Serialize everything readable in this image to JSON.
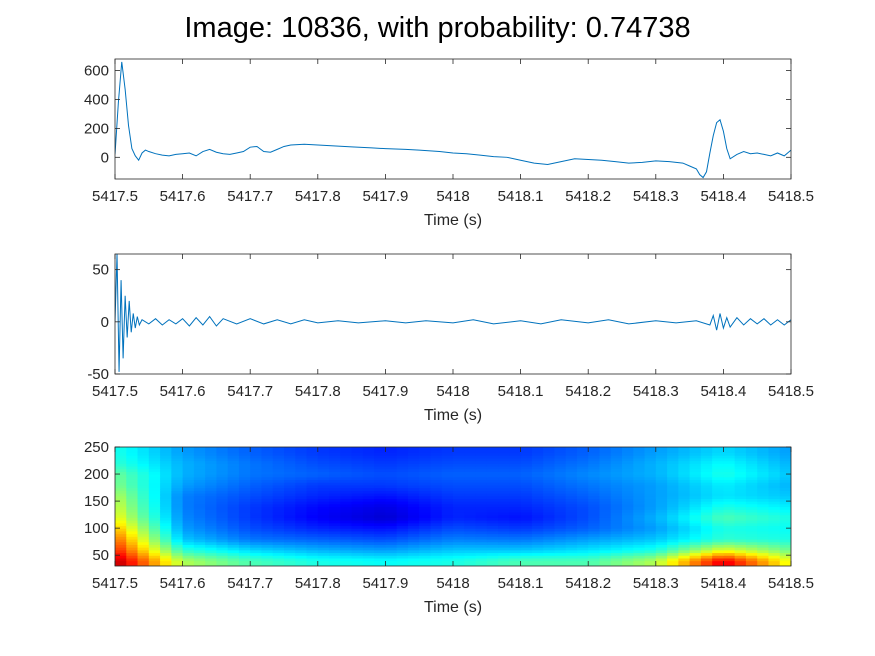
{
  "figure": {
    "title": "Image: 10836, with probability: 0.74738",
    "line_color": "#0072BD"
  },
  "chart_data": [
    {
      "type": "line",
      "title": "",
      "xlabel": "Time (s)",
      "ylabel": "",
      "xlim": [
        5417.5,
        5418.5
      ],
      "ylim": [
        -150,
        680
      ],
      "xticks": [
        5417.5,
        5417.6,
        5417.7,
        5417.8,
        5417.9,
        5418,
        5418.1,
        5418.2,
        5418.3,
        5418.4,
        5418.5
      ],
      "xtick_labels": [
        "5417.5",
        "5417.6",
        "5417.7",
        "5417.8",
        "5417.9",
        "5418",
        "5418.1",
        "5418.2",
        "5418.3",
        "5418.4",
        "5418.5"
      ],
      "yticks": [
        0,
        200,
        400,
        600
      ],
      "ytick_labels": [
        "0",
        "200",
        "400",
        "600"
      ],
      "series": [
        {
          "x": [
            5417.5,
            5417.505,
            5417.51,
            5417.515,
            5417.52,
            5417.525,
            5417.53,
            5417.535,
            5417.54,
            5417.545,
            5417.55,
            5417.56,
            5417.57,
            5417.58,
            5417.59,
            5417.6,
            5417.61,
            5417.62,
            5417.63,
            5417.64,
            5417.65,
            5417.66,
            5417.67,
            5417.68,
            5417.69,
            5417.7,
            5417.71,
            5417.72,
            5417.73,
            5417.74,
            5417.75,
            5417.76,
            5417.78,
            5417.8,
            5417.82,
            5417.85,
            5417.88,
            5417.9,
            5417.93,
            5417.95,
            5417.98,
            5418.0,
            5418.02,
            5418.04,
            5418.06,
            5418.08,
            5418.1,
            5418.12,
            5418.14,
            5418.16,
            5418.18,
            5418.2,
            5418.22,
            5418.24,
            5418.26,
            5418.28,
            5418.3,
            5418.32,
            5418.34,
            5418.35,
            5418.36,
            5418.365,
            5418.37,
            5418.375,
            5418.38,
            5418.385,
            5418.39,
            5418.395,
            5418.4,
            5418.405,
            5418.41,
            5418.42,
            5418.43,
            5418.44,
            5418.45,
            5418.46,
            5418.47,
            5418.48,
            5418.49,
            5418.5
          ],
          "y": [
            20,
            380,
            660,
            470,
            220,
            60,
            10,
            -20,
            30,
            50,
            40,
            25,
            15,
            10,
            20,
            25,
            30,
            10,
            40,
            55,
            35,
            25,
            20,
            30,
            40,
            70,
            75,
            40,
            35,
            55,
            75,
            85,
            90,
            85,
            80,
            72,
            65,
            60,
            55,
            50,
            40,
            30,
            25,
            15,
            5,
            0,
            -20,
            -40,
            -50,
            -30,
            -10,
            -15,
            -20,
            -30,
            -40,
            -35,
            -25,
            -30,
            -40,
            -60,
            -80,
            -120,
            -140,
            -100,
            30,
            150,
            240,
            260,
            180,
            60,
            -10,
            20,
            40,
            25,
            30,
            20,
            10,
            30,
            10,
            50
          ]
        }
      ]
    },
    {
      "type": "line",
      "title": "",
      "xlabel": "Time (s)",
      "ylabel": "",
      "xlim": [
        5417.5,
        5418.5
      ],
      "ylim": [
        -50,
        65
      ],
      "xticks": [
        5417.5,
        5417.6,
        5417.7,
        5417.8,
        5417.9,
        5418,
        5418.1,
        5418.2,
        5418.3,
        5418.4,
        5418.5
      ],
      "xtick_labels": [
        "5417.5",
        "5417.6",
        "5417.7",
        "5417.8",
        "5417.9",
        "5418",
        "5418.1",
        "5418.2",
        "5418.3",
        "5418.4",
        "5418.5"
      ],
      "yticks": [
        -50,
        0,
        50
      ],
      "ytick_labels": [
        "-50",
        "0",
        "50"
      ],
      "series": [
        {
          "x": [
            5417.5,
            5417.503,
            5417.506,
            5417.509,
            5417.512,
            5417.515,
            5417.518,
            5417.521,
            5417.524,
            5417.527,
            5417.53,
            5417.533,
            5417.536,
            5417.54,
            5417.55,
            5417.56,
            5417.57,
            5417.58,
            5417.59,
            5417.6,
            5417.61,
            5417.62,
            5417.63,
            5417.64,
            5417.65,
            5417.66,
            5417.68,
            5417.7,
            5417.72,
            5417.74,
            5417.76,
            5417.78,
            5417.8,
            5417.83,
            5417.86,
            5417.9,
            5417.93,
            5417.96,
            5418.0,
            5418.03,
            5418.06,
            5418.1,
            5418.13,
            5418.16,
            5418.2,
            5418.23,
            5418.26,
            5418.3,
            5418.33,
            5418.36,
            5418.38,
            5418.385,
            5418.39,
            5418.395,
            5418.4,
            5418.405,
            5418.41,
            5418.42,
            5418.43,
            5418.44,
            5418.45,
            5418.46,
            5418.47,
            5418.48,
            5418.49,
            5418.5
          ],
          "y": [
            0,
            65,
            -48,
            40,
            -35,
            25,
            -15,
            20,
            -10,
            8,
            -6,
            5,
            -3,
            2,
            -2,
            3,
            -3,
            2,
            -2,
            3,
            -4,
            4,
            -3,
            5,
            -4,
            3,
            -2,
            3,
            -2,
            2,
            -2,
            2,
            -1,
            1,
            -1,
            1,
            -1,
            1,
            -1,
            2,
            -2,
            1,
            -2,
            2,
            -1,
            2,
            -2,
            1,
            -1,
            1,
            -3,
            6,
            -8,
            8,
            -6,
            4,
            -5,
            4,
            -3,
            3,
            -2,
            3,
            -3,
            2,
            -3,
            2
          ]
        }
      ]
    },
    {
      "type": "heatmap",
      "title": "",
      "xlabel": "Time (s)",
      "ylabel": "",
      "colormap": "jet",
      "xlim": [
        5417.5,
        5418.5
      ],
      "ylim": [
        30,
        250
      ],
      "xticks": [
        5417.5,
        5417.6,
        5417.7,
        5417.8,
        5417.9,
        5418,
        5418.1,
        5418.2,
        5418.3,
        5418.4,
        5418.5
      ],
      "xtick_labels": [
        "5417.5",
        "5417.6",
        "5417.7",
        "5417.8",
        "5417.9",
        "5418",
        "5418.1",
        "5418.2",
        "5418.3",
        "5418.4",
        "5418.5"
      ],
      "yticks": [
        50,
        100,
        150,
        200,
        250
      ],
      "ytick_labels": [
        "50",
        "100",
        "150",
        "200",
        "250"
      ],
      "x": [
        5417.5,
        5417.6,
        5417.7,
        5417.8,
        5417.9,
        5418.0,
        5418.1,
        5418.2,
        5418.3,
        5418.4,
        5418.5
      ],
      "y": [
        40,
        60,
        80,
        100,
        120,
        140,
        160,
        180,
        200,
        220,
        240
      ],
      "z": [
        [
          0.95,
          0.55,
          0.45,
          0.4,
          0.38,
          0.4,
          0.45,
          0.45,
          0.55,
          0.9,
          0.6
        ],
        [
          0.85,
          0.42,
          0.34,
          0.3,
          0.28,
          0.32,
          0.32,
          0.35,
          0.4,
          0.6,
          0.48
        ],
        [
          0.78,
          0.32,
          0.24,
          0.22,
          0.2,
          0.25,
          0.24,
          0.28,
          0.32,
          0.42,
          0.4
        ],
        [
          0.7,
          0.28,
          0.2,
          0.16,
          0.14,
          0.2,
          0.18,
          0.22,
          0.28,
          0.4,
          0.38
        ],
        [
          0.62,
          0.26,
          0.18,
          0.12,
          0.08,
          0.16,
          0.14,
          0.2,
          0.3,
          0.45,
          0.4
        ],
        [
          0.58,
          0.25,
          0.18,
          0.13,
          0.1,
          0.16,
          0.16,
          0.2,
          0.28,
          0.4,
          0.36
        ],
        [
          0.55,
          0.25,
          0.2,
          0.16,
          0.14,
          0.18,
          0.18,
          0.22,
          0.28,
          0.35,
          0.32
        ],
        [
          0.5,
          0.28,
          0.22,
          0.18,
          0.18,
          0.2,
          0.2,
          0.24,
          0.28,
          0.36,
          0.3
        ],
        [
          0.48,
          0.3,
          0.24,
          0.22,
          0.2,
          0.22,
          0.22,
          0.26,
          0.3,
          0.4,
          0.32
        ],
        [
          0.42,
          0.3,
          0.24,
          0.2,
          0.18,
          0.2,
          0.2,
          0.24,
          0.3,
          0.38,
          0.3
        ],
        [
          0.4,
          0.28,
          0.22,
          0.18,
          0.16,
          0.18,
          0.18,
          0.22,
          0.28,
          0.34,
          0.28
        ]
      ]
    }
  ]
}
